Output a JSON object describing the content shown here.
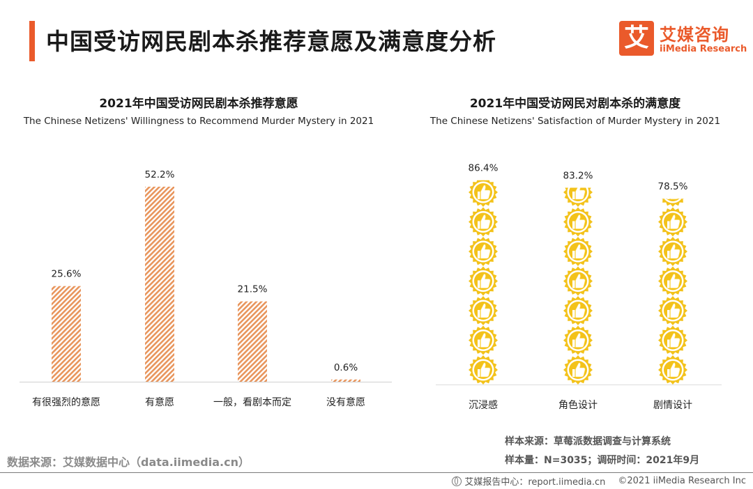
{
  "header": {
    "title": "中国受访网民剧本杀推荐意愿及满意度分析",
    "logo_cn": "艾媒咨询",
    "logo_en": "iiMedia Research",
    "logo_glyph": "艾"
  },
  "colors": {
    "accent": "#ea5a2b",
    "bar_hatch": "#e8955c",
    "thumb_gold": "#f3c21a",
    "thumb_inner": "#ffe066"
  },
  "chart_data": [
    {
      "type": "bar",
      "title": "2021年中国受访网民剧本杀推荐意愿",
      "subtitle": "The Chinese Netizens' Willingness to Recommend Murder Mystery in 2021",
      "categories": [
        "有很强烈的意愿",
        "有意愿",
        "一般，看剧本而定",
        "没有意愿"
      ],
      "values": [
        25.6,
        52.2,
        21.5,
        0.6
      ],
      "data_labels": [
        "25.6%",
        "52.2%",
        "21.5%",
        "0.6%"
      ],
      "unit": "%",
      "ylim": [
        0,
        55
      ],
      "grid": false
    },
    {
      "type": "pictograph",
      "title": "2021年中国受访网民对剧本杀的满意度",
      "subtitle": "The Chinese Netizens' Satisfaction of Murder Mystery in 2021",
      "categories": [
        "沉浸感",
        "角色设计",
        "剧情设计"
      ],
      "values": [
        86.4,
        83.2,
        78.5
      ],
      "data_labels": [
        "86.4%",
        "83.2%",
        "78.5%"
      ],
      "unit": "%",
      "icon": "thumbs-up-badge-icon",
      "icons_full_scale": 8,
      "ylim": [
        0,
        100
      ]
    }
  ],
  "notes": {
    "sample_source": "样本来源：草莓派数据调查与计算系统",
    "sample_size": "样本量：N=3035；调研时间：2021年9月"
  },
  "source": "数据来源：艾媒数据中心（data.iimedia.cn）",
  "footer": {
    "report": "艾媒报告中心：report.iimedia.cn",
    "copyright": "©2021  iiMedia Research  Inc"
  }
}
